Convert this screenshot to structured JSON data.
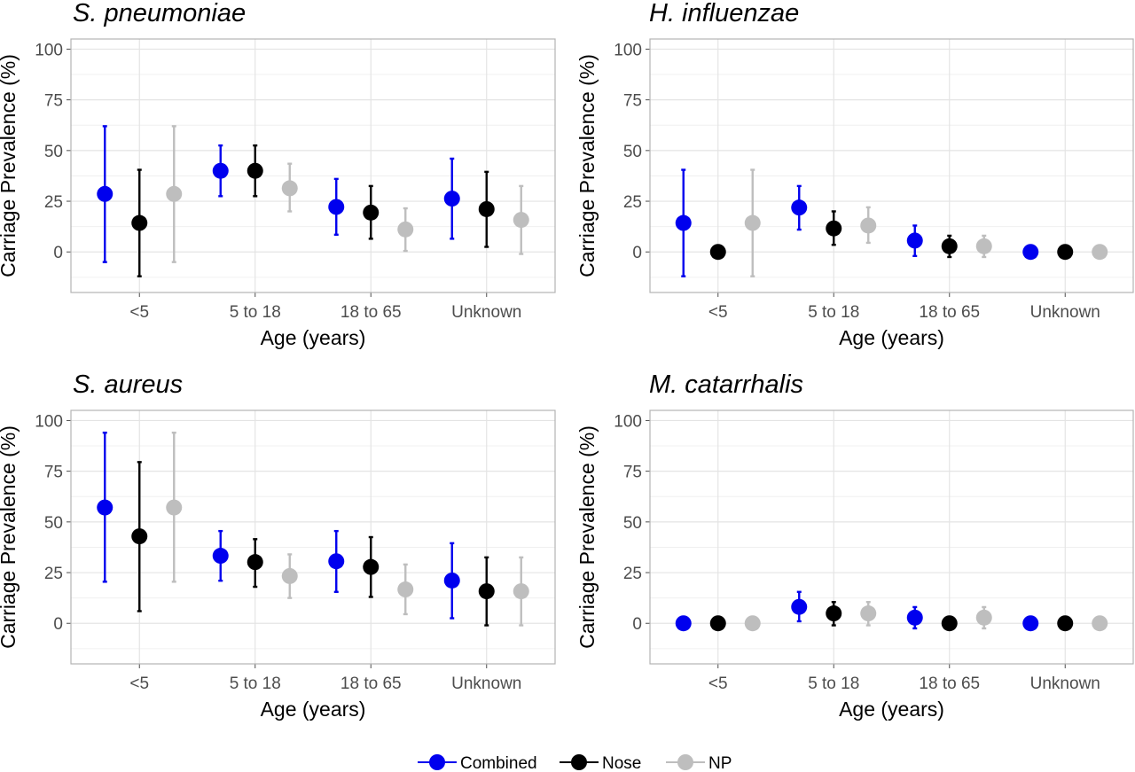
{
  "chart_data": [
    {
      "type": "scatter",
      "title": "S. pneumoniae",
      "xlabel": "Age (years)",
      "ylabel": "Carriage Prevalence (%)",
      "categories": [
        "<5",
        "5 to 18",
        "18 to 65",
        "Unknown"
      ],
      "ylim": [
        -20,
        105
      ],
      "yticks": [
        0,
        25,
        50,
        75,
        100
      ],
      "grid": true,
      "series": [
        {
          "name": "Combined",
          "values": [
            28.6,
            40,
            22.2,
            26.3
          ],
          "lower": [
            -5,
            27.5,
            8.5,
            6.5
          ],
          "upper": [
            62,
            52.5,
            36,
            46
          ]
        },
        {
          "name": "Nose",
          "values": [
            14.3,
            40,
            19.4,
            21.1
          ],
          "lower": [
            -12,
            27.5,
            6.5,
            2.5
          ],
          "upper": [
            40.5,
            52.5,
            32.5,
            39.5
          ]
        },
        {
          "name": "NP",
          "values": [
            28.6,
            31.4,
            11.1,
            15.8
          ],
          "lower": [
            -5,
            20,
            0.5,
            -1
          ],
          "upper": [
            62,
            43.5,
            21.5,
            32.5
          ]
        }
      ]
    },
    {
      "type": "scatter",
      "title": "H. influenzae",
      "xlabel": "Age (years)",
      "ylabel": "Carriage Prevalence (%)",
      "categories": [
        "<5",
        "5 to 18",
        "18 to 65",
        "Unknown"
      ],
      "ylim": [
        -20,
        105
      ],
      "yticks": [
        0,
        25,
        50,
        75,
        100
      ],
      "grid": true,
      "series": [
        {
          "name": "Combined",
          "values": [
            14.3,
            21.9,
            5.6,
            0
          ],
          "lower": [
            -12,
            11,
            -2,
            0
          ],
          "upper": [
            40.5,
            32.5,
            13,
            0
          ]
        },
        {
          "name": "Nose",
          "values": [
            0,
            11.6,
            2.8,
            0
          ],
          "lower": [
            0,
            3.5,
            -2.5,
            0
          ],
          "upper": [
            0,
            20,
            8,
            0
          ]
        },
        {
          "name": "NP",
          "values": [
            14.3,
            13,
            2.8,
            0
          ],
          "lower": [
            -12,
            4.5,
            -2.5,
            0
          ],
          "upper": [
            40.5,
            22,
            8,
            0
          ]
        }
      ]
    },
    {
      "type": "scatter",
      "title": "S. aureus",
      "xlabel": "Age (years)",
      "ylabel": "Carriage Prevalence (%)",
      "categories": [
        "<5",
        "5 to 18",
        "18 to 65",
        "Unknown"
      ],
      "ylim": [
        -20,
        105
      ],
      "yticks": [
        0,
        25,
        50,
        75,
        100
      ],
      "grid": true,
      "series": [
        {
          "name": "Combined",
          "values": [
            57.1,
            33.3,
            30.6,
            21.1
          ],
          "lower": [
            20.5,
            21,
            15.5,
            2.5
          ],
          "upper": [
            94,
            45.5,
            45.5,
            39.5
          ]
        },
        {
          "name": "Nose",
          "values": [
            42.9,
            30.2,
            27.8,
            15.8
          ],
          "lower": [
            6,
            18,
            13,
            -1
          ],
          "upper": [
            79.5,
            41.5,
            42.5,
            32.5
          ]
        },
        {
          "name": "NP",
          "values": [
            57.1,
            23.3,
            16.7,
            15.8
          ],
          "lower": [
            20.5,
            12.5,
            4.5,
            -1
          ],
          "upper": [
            94,
            34,
            29,
            32.5
          ]
        }
      ]
    },
    {
      "type": "scatter",
      "title": "M. catarrhalis",
      "xlabel": "Age (years)",
      "ylabel": "Carriage Prevalence (%)",
      "categories": [
        "<5",
        "5 to 18",
        "18 to 65",
        "Unknown"
      ],
      "ylim": [
        -20,
        105
      ],
      "yticks": [
        0,
        25,
        50,
        75,
        100
      ],
      "grid": true,
      "series": [
        {
          "name": "Combined",
          "values": [
            0,
            8.1,
            2.8,
            0
          ],
          "lower": [
            0,
            1,
            -2.5,
            0
          ],
          "upper": [
            0,
            15.5,
            8,
            0
          ]
        },
        {
          "name": "Nose",
          "values": [
            0,
            4.9,
            0,
            0
          ],
          "lower": [
            0,
            -1,
            0,
            0
          ],
          "upper": [
            0,
            10.5,
            0,
            0
          ]
        },
        {
          "name": "NP",
          "values": [
            0,
            4.9,
            2.8,
            0
          ],
          "lower": [
            0,
            -1,
            -2.5,
            0
          ],
          "upper": [
            0,
            10.5,
            8,
            0
          ]
        }
      ]
    }
  ],
  "legend": {
    "position": "bottom",
    "items": [
      {
        "label": "Combined",
        "color": "#0000ee"
      },
      {
        "label": "Nose",
        "color": "#000000"
      },
      {
        "label": "NP",
        "color": "#bebebe"
      }
    ]
  }
}
